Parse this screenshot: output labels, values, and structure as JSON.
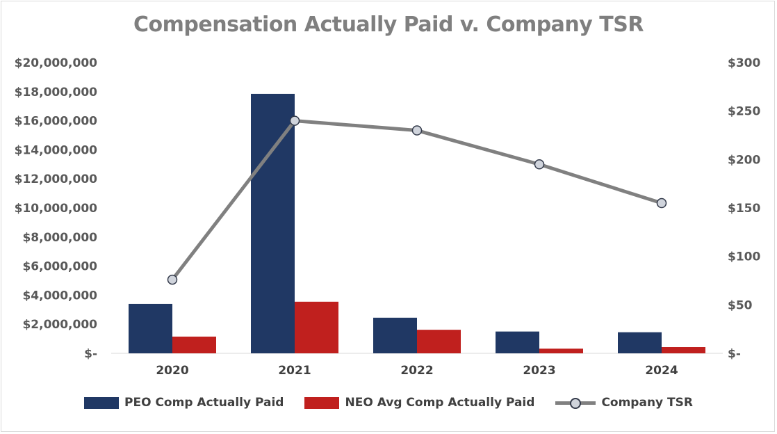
{
  "chart_data": {
    "type": "bar",
    "title": "Compensation Actually Paid v. Company TSR",
    "categories": [
      "2020",
      "2021",
      "2022",
      "2023",
      "2024"
    ],
    "series": [
      {
        "name": "PEO Comp Actually Paid",
        "type": "bar",
        "axis": "left",
        "color": "#203864",
        "values": [
          3400000,
          17850000,
          2450000,
          1500000,
          1450000
        ]
      },
      {
        "name": "NEO Avg Comp Actually Paid",
        "type": "bar",
        "axis": "left",
        "color": "#c0201e",
        "values": [
          1150000,
          3550000,
          1620000,
          320000,
          430000
        ]
      },
      {
        "name": "Company TSR",
        "type": "line",
        "axis": "right",
        "color": "#808080",
        "values": [
          76,
          240,
          230,
          195,
          155
        ]
      }
    ],
    "y_left": {
      "min": 0,
      "max": 20000000,
      "step": 2000000,
      "tick_labels": [
        "$-",
        "$2,000,000",
        "$4,000,000",
        "$6,000,000",
        "$8,000,000",
        "$10,000,000",
        "$12,000,000",
        "$14,000,000",
        "$16,000,000",
        "$18,000,000",
        "$20,000,000"
      ]
    },
    "y_right": {
      "min": 0,
      "max": 300,
      "step": 50,
      "tick_labels": [
        "$-",
        "$50",
        "$100",
        "$150",
        "$200",
        "$250",
        "$300"
      ]
    },
    "grid": false,
    "legend_position": "bottom"
  }
}
